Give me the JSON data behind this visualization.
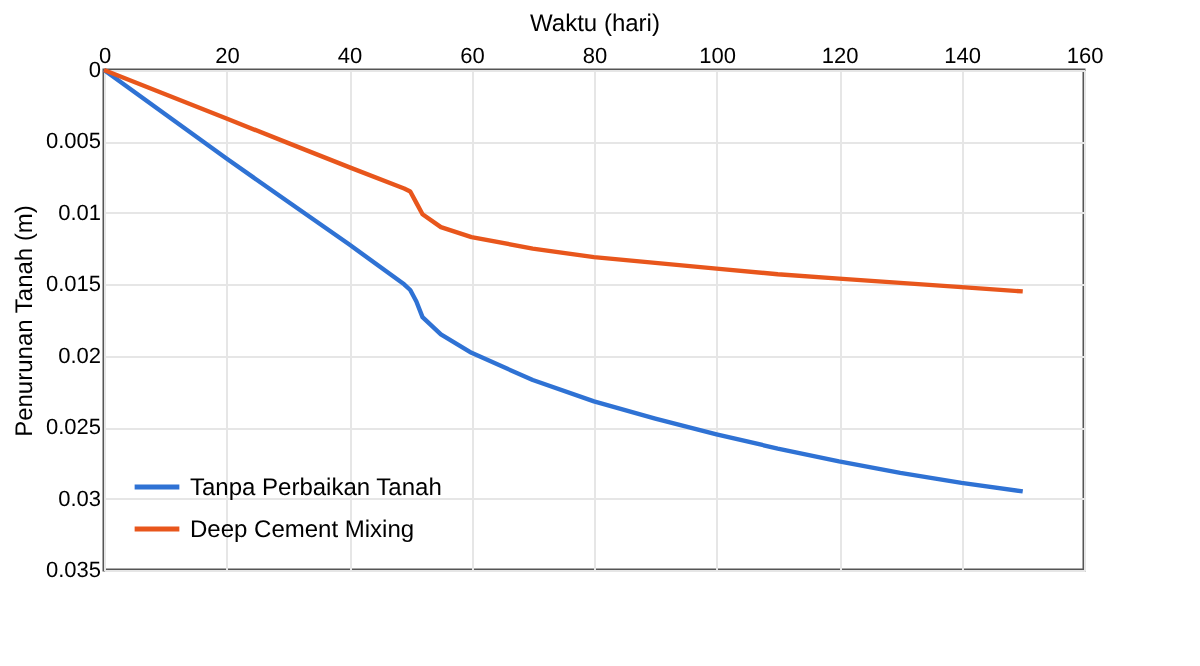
{
  "chart_data": {
    "type": "line",
    "xlabel": "Waktu (hari)",
    "ylabel": "Penurunan Tanah (m)",
    "xlim": [
      0,
      160
    ],
    "xticks": [
      0,
      20,
      40,
      60,
      80,
      100,
      120,
      140,
      160
    ],
    "ylim": [
      0.035,
      0
    ],
    "yticks": [
      0,
      0.005,
      0.01,
      0.015,
      0.02,
      0.025,
      0.03,
      0.035
    ],
    "grid": true,
    "legend": "bottom left",
    "marker": "none",
    "line_style": "solid",
    "series": [
      {
        "name": "Tanpa Perbaikan Tanah",
        "color": "#2f72d4",
        "x": [
          0,
          10,
          20,
          30,
          40,
          49,
          50,
          51,
          52,
          55,
          60,
          70,
          80,
          90,
          100,
          110,
          120,
          130,
          140,
          150
        ],
        "values": [
          0,
          0.0031,
          0.0062,
          0.0092,
          0.0122,
          0.015,
          0.0154,
          0.0162,
          0.0173,
          0.0185,
          0.0198,
          0.0217,
          0.0232,
          0.0244,
          0.0255,
          0.0265,
          0.0274,
          0.0282,
          0.0289,
          0.0295
        ]
      },
      {
        "name": "Deep Cement Mixing",
        "color": "#e8561c",
        "x": [
          0,
          10,
          20,
          30,
          40,
          49,
          50,
          51,
          52,
          55,
          60,
          70,
          80,
          90,
          100,
          110,
          120,
          130,
          140,
          150
        ],
        "values": [
          0,
          0.0017,
          0.0034,
          0.0051,
          0.0068,
          0.0083,
          0.0085,
          0.0093,
          0.0101,
          0.011,
          0.0117,
          0.0125,
          0.0131,
          0.0135,
          0.0139,
          0.0143,
          0.0146,
          0.0149,
          0.0152,
          0.0155
        ]
      }
    ]
  }
}
